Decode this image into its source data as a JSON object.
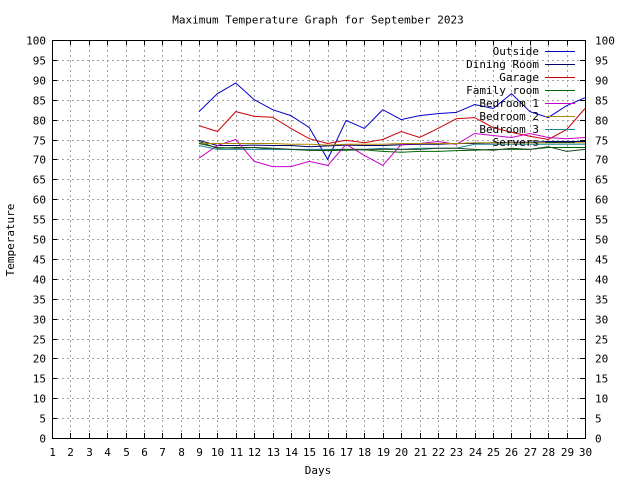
{
  "chart_data": {
    "type": "line",
    "title": "Maximum Temperature Graph for September 2023",
    "xlabel": "Days",
    "ylabel": "Temperature",
    "xlim": [
      1,
      30
    ],
    "ylim": [
      0,
      100
    ],
    "x_ticks": [
      1,
      2,
      3,
      4,
      5,
      6,
      7,
      8,
      9,
      10,
      11,
      12,
      13,
      14,
      15,
      16,
      17,
      18,
      19,
      20,
      21,
      22,
      23,
      24,
      25,
      26,
      27,
      28,
      29,
      30
    ],
    "y_ticks": [
      0,
      5,
      10,
      15,
      20,
      25,
      30,
      35,
      40,
      45,
      50,
      55,
      60,
      65,
      70,
      75,
      80,
      85,
      90,
      95,
      100
    ],
    "grid": true,
    "legend_position": "top-right",
    "x": [
      9,
      10,
      11,
      12,
      13,
      14,
      15,
      16,
      17,
      18,
      19,
      20,
      21,
      22,
      23,
      24,
      25,
      26,
      27,
      28,
      29,
      30
    ],
    "series": [
      {
        "name": "Outside",
        "color": "#0000cc",
        "values": [
          82,
          86.5,
          89.2,
          85,
          82.5,
          81,
          78,
          70,
          79.8,
          77.8,
          82.5,
          80,
          81,
          81.5,
          81.8,
          83.8,
          82.8,
          86.5,
          82,
          80.5,
          83.5,
          85.5
        ]
      },
      {
        "name": "Dining Room",
        "color": "#000066",
        "values": [
          74.8,
          73.5,
          73.5,
          73.6,
          73.5,
          73.5,
          73.2,
          73.4,
          73.6,
          73.5,
          73.5,
          73.7,
          73.8,
          73.8,
          74,
          74,
          74.2,
          74.3,
          74.3,
          74.5,
          74.5,
          74.5
        ]
      },
      {
        "name": "Garage",
        "color": "#cc0000",
        "values": [
          78.5,
          77,
          82,
          80.8,
          80.6,
          77.8,
          75.2,
          74,
          74.8,
          74.2,
          75,
          77,
          75.5,
          77.8,
          80.2,
          80.5,
          78,
          76.8,
          75.8,
          75,
          77.5,
          82.8
        ]
      },
      {
        "name": "Family room",
        "color": "#006600",
        "values": [
          74.5,
          72.8,
          73,
          73,
          72.5,
          72.5,
          72.3,
          72.2,
          72.3,
          72.4,
          72,
          71.8,
          72,
          72,
          72.2,
          72.3,
          72.5,
          72.5,
          72.5,
          73,
          73,
          73
        ]
      },
      {
        "name": "Bedroom 1",
        "color": "#cc00cc",
        "values": [
          70.3,
          73.5,
          75,
          69.5,
          68.2,
          68.2,
          69.5,
          68.5,
          73.8,
          71,
          68.5,
          73.8,
          74,
          74.5,
          73.8,
          76.5,
          76,
          75.5,
          76.5,
          75.5,
          75.2,
          75.5
        ]
      },
      {
        "name": "Bedroom 2",
        "color": "#aa8800",
        "values": [
          74,
          74,
          74,
          74,
          74,
          73.8,
          73.8,
          73.6,
          73.8,
          73.8,
          73.8,
          74,
          74,
          74,
          74,
          74.2,
          74.2,
          74.2,
          74.2,
          74.2,
          74.2,
          74.2
        ]
      },
      {
        "name": "Bedroom 3",
        "color": "#1a8a9a",
        "values": [
          73.5,
          72.5,
          72.5,
          72.5,
          72.5,
          72.5,
          72.5,
          72.5,
          72.5,
          72.5,
          72.8,
          72.5,
          72.8,
          72.8,
          72.8,
          73.8,
          73.8,
          73.8,
          73.8,
          73.8,
          73.8,
          73.8
        ]
      },
      {
        "name": "Servers",
        "color": "#224422",
        "values": [
          74,
          73,
          72.8,
          73,
          72.8,
          72.5,
          72.3,
          72.3,
          72.5,
          72.5,
          72.5,
          72.5,
          72.5,
          72.8,
          72.8,
          72.5,
          72.3,
          72.8,
          72.5,
          73.2,
          72,
          72.5
        ]
      }
    ]
  }
}
